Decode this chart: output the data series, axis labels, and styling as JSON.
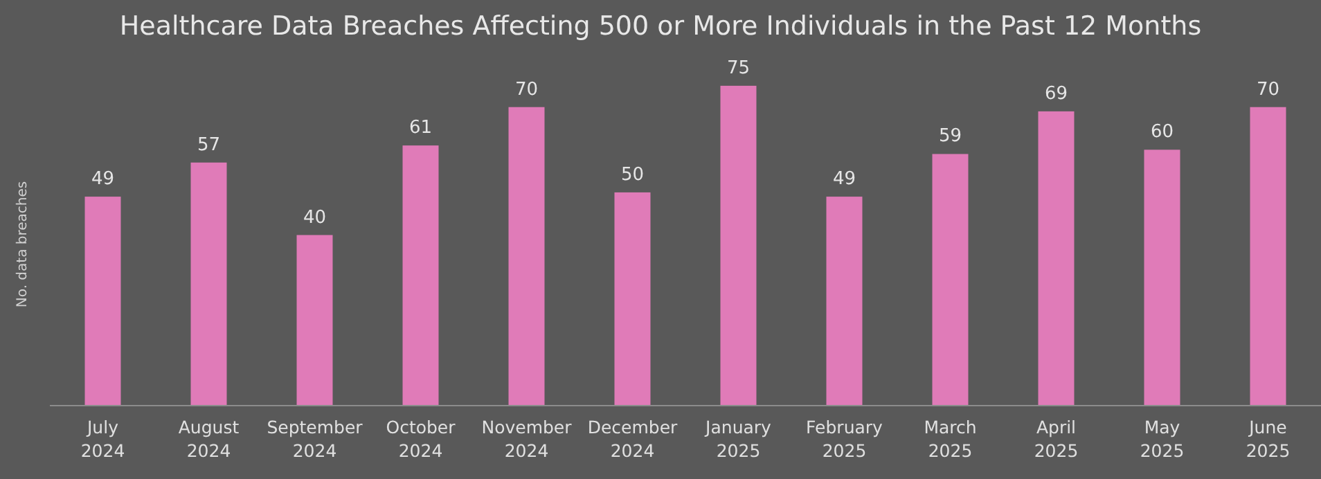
{
  "chart_data": {
    "type": "bar",
    "title": "Healthcare Data Breaches Affecting 500 or More Individuals in the Past 12 Months",
    "ylabel": "No. data breaches",
    "categories": [
      "July 2024",
      "August 2024",
      "September 2024",
      "October 2024",
      "November 2024",
      "December 2024",
      "January 2025",
      "February 2025",
      "March 2025",
      "April 2025",
      "May 2025",
      "June 2025"
    ],
    "values": [
      49,
      57,
      40,
      61,
      70,
      50,
      75,
      49,
      59,
      69,
      60,
      70
    ],
    "color": "#e07bb8",
    "data_labels": true
  }
}
